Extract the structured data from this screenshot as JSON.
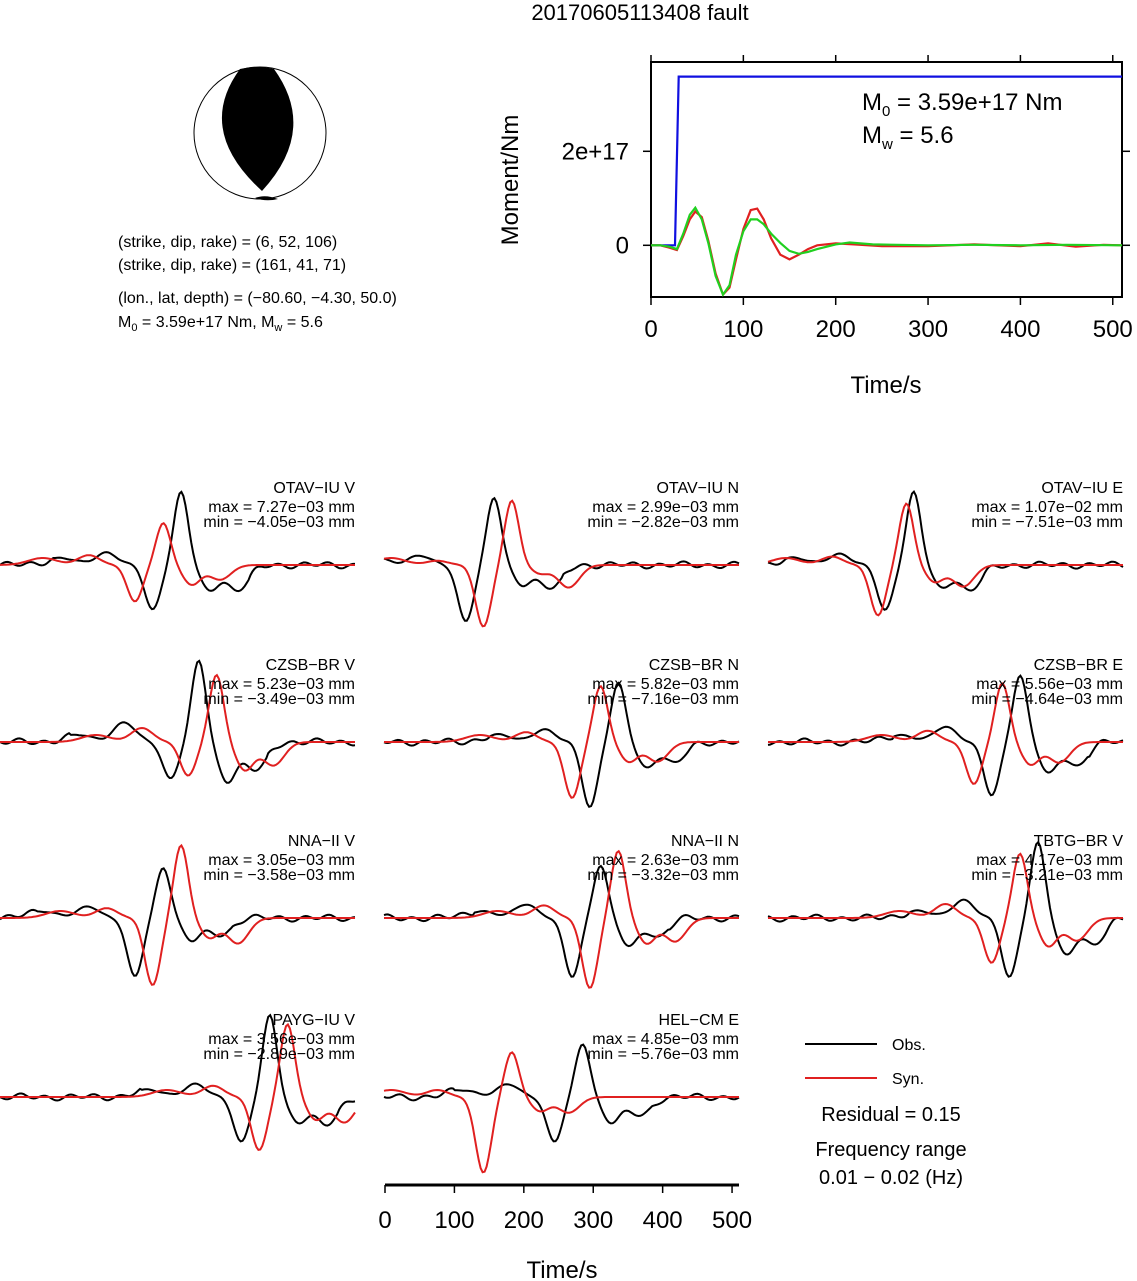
{
  "title": "20170605113408 fault",
  "colors": {
    "obs": "#000000",
    "syn": "#e02020",
    "moment_total": "#1010e0",
    "moment_green": "#20d020"
  },
  "mechanism": {
    "line1": "(strike, dip, rake) = (6, 52, 106)",
    "line2": "(strike, dip, rake) = (161, 41, 71)",
    "line3": "(lon., lat, depth) = (−80.60, −4.30, 50.0)",
    "line4_m0": "M",
    "line4_sub": "0",
    "line4_rest": " = 3.59e+17 Nm, M",
    "line4_sub2": "w",
    "line4_end": " = 5.6"
  },
  "moment_panel": {
    "m0_label": "M",
    "m0_sub": "0",
    "m0_value": " = 3.59e+17 Nm",
    "mw_label": "M",
    "mw_sub": "w",
    "mw_value": " = 5.6"
  },
  "legend": {
    "obs": "Obs.",
    "syn": "Syn.",
    "residual": "Residual = 0.15",
    "freq_label": "Frequency range",
    "freq_value": "0.01 − 0.02 (Hz)"
  },
  "chart_data": [
    {
      "type": "line",
      "title": "",
      "xlabel": "Time/s",
      "ylabel": "Moment/Nm",
      "xlim": [
        0,
        510
      ],
      "ylim": [
        -1.1e+17,
        3.9e+17
      ],
      "xticks": [
        "0",
        "100",
        "200",
        "300",
        "400",
        "500"
      ],
      "xtick_values": [
        0,
        100,
        200,
        300,
        400,
        500
      ],
      "yticks": [
        "0",
        "2e+17"
      ],
      "ytick_values": [
        0,
        2e+17
      ],
      "series": [
        {
          "name": "",
          "color": "#1010e0",
          "x": [
            0,
            22,
            26,
            30,
            32,
            60,
            200,
            510
          ],
          "y": [
            0,
            0,
            0,
            3.59e+17,
            3.59e+17,
            3.59e+17,
            3.59e+17,
            3.59e+17
          ]
        },
        {
          "name": "",
          "color": "#e02020",
          "x": [
            0,
            10,
            20,
            28,
            35,
            42,
            48,
            55,
            62,
            70,
            78,
            85,
            92,
            100,
            108,
            115,
            122,
            130,
            140,
            150,
            160,
            170,
            180,
            200,
            220,
            250,
            300,
            350,
            400,
            430,
            460,
            490,
            510
          ],
          "y": [
            0,
            0,
            -5000000000000000.0,
            -1e+16,
            2e+16,
            5.5e+16,
            7.2e+16,
            6e+16,
            1e+16,
            -6e+16,
            -1.05e+17,
            -9e+16,
            -3e+16,
            3.5e+16,
            7.5e+16,
            7.8e+16,
            5.5e+16,
            1.5e+16,
            -2e+16,
            -3e+16,
            -2e+16,
            -8000000000000000.0,
            0,
            4000000000000000.0,
            2000000000000000.0,
            -2000000000000000.0,
            -2000000000000000.0,
            2000000000000000.0,
            -2000000000000000.0,
            4000000000000000.0,
            -3000000000000000.0,
            1000000000000000.0,
            0
          ]
        },
        {
          "name": "",
          "color": "#20d020",
          "x": [
            0,
            10,
            20,
            28,
            35,
            42,
            48,
            55,
            62,
            70,
            78,
            85,
            92,
            100,
            108,
            115,
            122,
            130,
            140,
            150,
            160,
            170,
            180,
            200,
            215,
            240,
            300,
            350,
            400,
            450,
            510
          ],
          "y": [
            0,
            0,
            -3000000000000000.0,
            -8000000000000000.0,
            2.5e+16,
            6.5e+16,
            8e+16,
            5.5e+16,
            5000000000000000.0,
            -6.5e+16,
            -1.05e+17,
            -8.5e+16,
            -2e+16,
            3e+16,
            5.5e+16,
            5.5e+16,
            4.5e+16,
            2.5e+16,
            5000000000000000.0,
            -1.2e+16,
            -1.8e+16,
            -1.4e+16,
            -8000000000000000.0,
            2000000000000000.0,
            6000000000000000.0,
            2000000000000000.0,
            0,
            1000000000000000.0,
            0,
            1000000000000000.0,
            0
          ]
        }
      ]
    }
  ],
  "waveforms": [
    {
      "label": "OTAV−IU V",
      "max": "max = 7.27e−03 mm",
      "min": "min = −4.05e−03 mm",
      "a": [
        0.45,
        2.6,
        1.6,
        0.9
      ],
      "b": [
        0.4,
        1.5,
        1.3,
        0.7
      ]
    },
    {
      "label": "OTAV−IU N",
      "max": "max = 2.99e−03 mm",
      "min": "min = −2.82e−03 mm",
      "a": [
        0.25,
        2.4,
        2.0,
        0.7
      ],
      "b": [
        0.3,
        2.3,
        2.2,
        0.3
      ]
    },
    {
      "label": "OTAV−IU E",
      "max": "max = 1.07e−02 mm",
      "min": "min = −7.51e−03 mm",
      "a": [
        0.35,
        2.6,
        1.6,
        0.8
      ],
      "b": [
        0.33,
        2.2,
        1.8,
        0.6
      ]
    },
    {
      "label": "CZSB−BR V",
      "max": "max = 5.23e−03 mm",
      "min": "min = −3.49e−03 mm",
      "a": [
        0.5,
        2.9,
        1.3,
        1.4
      ],
      "b": [
        0.55,
        2.4,
        1.2,
        1.0
      ]
    },
    {
      "label": "CZSB−BR N",
      "max": "max = 5.82e−03 mm",
      "min": "min = −7.16e−03 mm",
      "a": [
        0.6,
        2.1,
        2.3,
        0.9
      ],
      "b": [
        0.55,
        2.0,
        2.0,
        0.7
      ]
    },
    {
      "label": "CZSB−BR E",
      "max": "max = 5.56e−03 mm",
      "min": "min = −4.64e−03 mm",
      "a": [
        0.65,
        2.4,
        1.9,
        1.1
      ],
      "b": [
        0.6,
        2.1,
        1.5,
        0.8
      ]
    },
    {
      "label": "NNA−II V",
      "max": "max = 3.05e−03 mm",
      "min": "min = −3.58e−03 mm",
      "a": [
        0.4,
        1.8,
        2.1,
        0.8
      ],
      "b": [
        0.45,
        2.6,
        2.4,
        0.7
      ]
    },
    {
      "label": "NNA−II N",
      "max": "max = 2.63e−03 mm",
      "min": "min = −3.32e−03 mm",
      "a": [
        0.55,
        1.9,
        2.1,
        1.0
      ],
      "b": [
        0.6,
        2.4,
        2.5,
        0.9
      ]
    },
    {
      "label": "TBTG−BR V",
      "max": "max = 4.17e−03 mm",
      "min": "min = −3.21e−03 mm",
      "a": [
        0.7,
        2.7,
        2.1,
        1.3
      ],
      "b": [
        0.65,
        2.3,
        1.6,
        1.0
      ]
    },
    {
      "label": "PAYG−IU V",
      "max": "max = 3.56e−03 mm",
      "min": "min = −2.89e−03 mm",
      "a": [
        0.7,
        2.9,
        1.6,
        0.9
      ],
      "b": [
        0.75,
        2.6,
        1.9,
        0.8
      ]
    },
    {
      "label": "HEL−CM E",
      "max": "max = 4.85e−03 mm",
      "min": "min = −5.76e−03 mm",
      "a": [
        0.5,
        1.9,
        1.6,
        0.9
      ],
      "b": [
        0.3,
        1.6,
        2.7,
        0.5
      ]
    }
  ],
  "bottom_axis": {
    "xlabel": "Time/s",
    "xticks": [
      "0",
      "100",
      "200",
      "300",
      "400",
      "500"
    ],
    "xtick_values": [
      0,
      100,
      200,
      300,
      400,
      500
    ],
    "xlim": [
      0,
      510
    ]
  }
}
